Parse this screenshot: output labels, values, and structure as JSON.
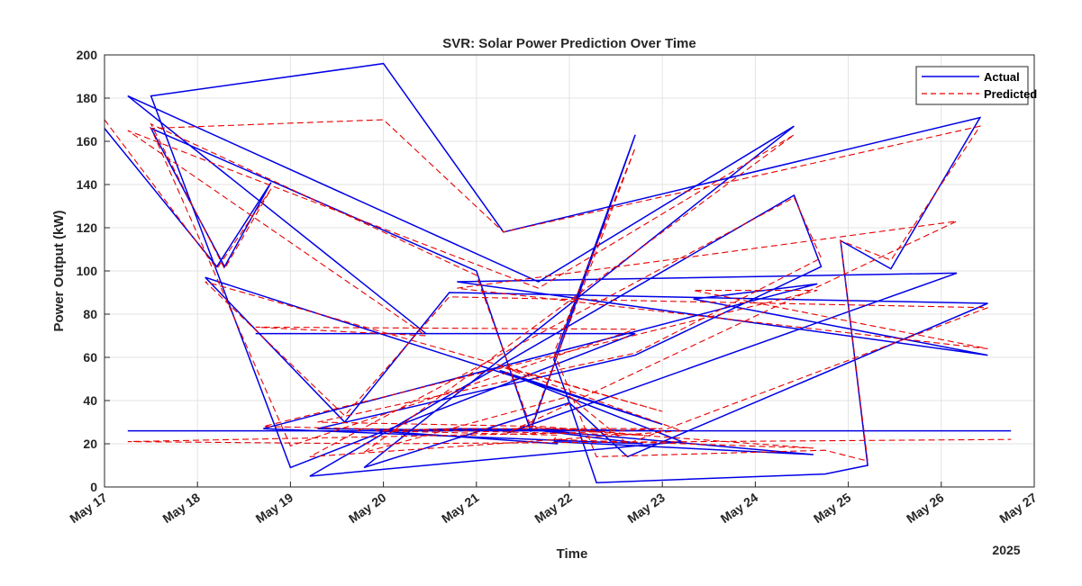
{
  "chart_data": {
    "type": "line",
    "title": "SVR: Solar Power Prediction Over Time",
    "xlabel": "Time",
    "ylabel": "Power Output (kW)",
    "x_year_label": "2025",
    "xlim": [
      "2025-05-17",
      "2025-05-27"
    ],
    "ylim": [
      0,
      200
    ],
    "x_ticks": [
      "May 17",
      "May 18",
      "May 19",
      "May 20",
      "May 21",
      "May 22",
      "May 23",
      "May 24",
      "May 25",
      "May 26",
      "May 27"
    ],
    "y_ticks": [
      "0",
      "20",
      "40",
      "60",
      "80",
      "100",
      "120",
      "140",
      "160",
      "180",
      "200"
    ],
    "grid": true,
    "legend_position": "top-right",
    "x": [
      "2025-05-17 00:00",
      "2025-05-18 05:00",
      "2025-05-18 19:00",
      "2025-05-18 07:00",
      "2025-05-17 12:00",
      "2025-05-21 00:00",
      "2025-05-21 14:00",
      "2025-05-22 17:00",
      "2025-05-21 20:00",
      "2025-05-22 00:00",
      "2025-05-22 07:00",
      "2025-05-24 18:00",
      "2025-05-25 05:00",
      "2025-05-24 22:00",
      "2025-05-25 11:00",
      "2025-05-26 10:00",
      "2025-05-21 07:00",
      "2025-05-20 00:00",
      "2025-05-17 12:00",
      "2025-05-19 00:00",
      "2025-05-22 17:00",
      "2025-05-18 15:00",
      "2025-05-20 11:00",
      "2025-05-17 06:00",
      "2025-05-21 16:00",
      "2025-05-24 10:00",
      "2025-05-19 19:00",
      "2025-05-22 00:00",
      "2025-05-22 15:00",
      "2025-05-26 12:00",
      "2025-05-20 17:00",
      "2025-05-19 14:00",
      "2025-05-18 02:00",
      "2025-05-23 00:00",
      "2025-05-21 06:00",
      "2025-05-23 05:00",
      "2025-05-19 05:00",
      "2025-05-24 10:00",
      "2025-05-24 17:00",
      "2025-05-22 17:00",
      "2025-05-19 07:00",
      "2025-05-21 17:00",
      "2025-05-22 19:00",
      "2025-05-18 17:00",
      "2025-05-24 16:00",
      "2025-05-23 08:00",
      "2025-05-26 12:00",
      "2025-05-20 19:00",
      "2025-05-26 04:00",
      "2025-05-21 08:00",
      "2025-05-21 12:00",
      "2025-05-24 15:00",
      "2025-05-21 20:00",
      "2025-05-21 21:00",
      "2025-05-19 22:00",
      "2025-05-20 19:00",
      "2025-05-23 00:00",
      "2025-05-22 00:00",
      "2025-05-17 06:00",
      "2025-05-20 00:00",
      "2025-05-26 18:00"
    ],
    "series": [
      {
        "name": "Actual",
        "color": "#0000e6",
        "style": "solid",
        "values": [
          166,
          102,
          141,
          102,
          166,
          100,
          26,
          163,
          59,
          39,
          2,
          6,
          10,
          114,
          101,
          171,
          118,
          196,
          181,
          9,
          71,
          71,
          71,
          181,
          95,
          167,
          9,
          39,
          14,
          85,
          90,
          30,
          97,
          29,
          54,
          21,
          5,
          135,
          102,
          61,
          27,
          26,
          20,
          27,
          94,
          87,
          61,
          95,
          99,
          25,
          27,
          15,
          21,
          20,
          26,
          27,
          26,
          26,
          26,
          26,
          26
        ]
      },
      {
        "name": "Predicted",
        "color": "#e60000",
        "style": "dashed",
        "values": [
          170,
          101,
          138,
          101,
          168,
          98,
          28,
          157,
          62,
          45,
          14,
          17,
          12,
          114,
          105,
          167,
          118,
          170,
          166,
          19,
          73,
          74,
          70,
          165,
          92,
          163,
          16,
          42,
          20,
          83,
          88,
          33,
          95,
          35,
          56,
          26,
          14,
          134,
          106,
          62,
          30,
          28,
          24,
          28,
          91,
          91,
          64,
          92,
          123,
          25,
          28,
          18,
          22,
          24,
          26,
          27,
          27,
          25,
          21,
          20,
          22
        ]
      }
    ]
  }
}
